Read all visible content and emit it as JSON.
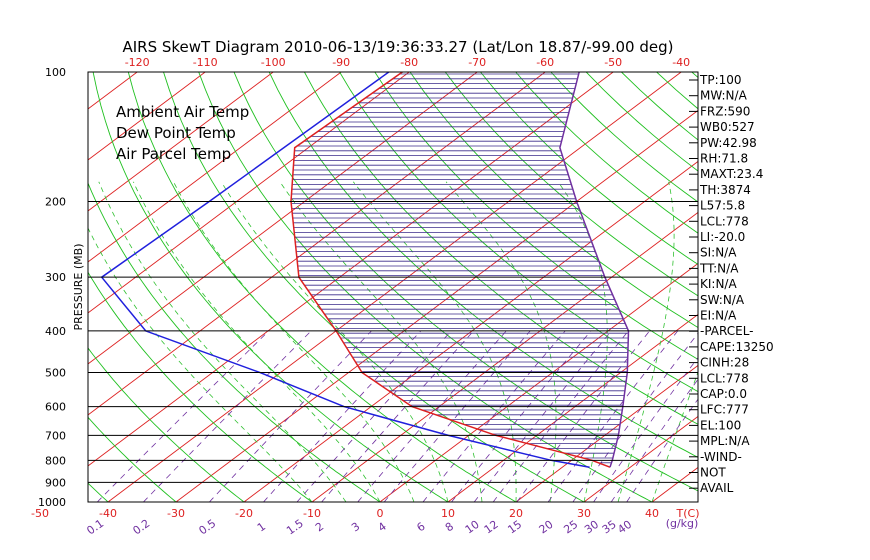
{
  "chart_data": {
    "type": "line",
    "title": "AIRS SkewT Diagram 2010-06-13/19:36:33.27 (Lat/Lon 18.87/-99.00 deg)",
    "ylabel": "PRESSURE (MB)",
    "xlabel": "T(C)",
    "mixing_ratio_label": "(g/kg)",
    "pressure_ticks": [
      "100",
      "200",
      "300",
      "400",
      "500",
      "600",
      "700",
      "800",
      "900",
      "1000"
    ],
    "temp_ticks_bottom": [
      "-50",
      "-40",
      "-30",
      "-20",
      "-10",
      "0",
      "10",
      "20",
      "30",
      "40"
    ],
    "temp_ticks_top": [
      "-120",
      "-110",
      "-100",
      "-90",
      "-80",
      "-70",
      "-60",
      "-50",
      "-40"
    ],
    "mixing_ratio_ticks": [
      "0.1",
      "0.2",
      "0.5",
      "1",
      "1.5",
      "2",
      "3",
      "4",
      "6",
      "8",
      "10",
      "12",
      "15",
      "20",
      "25",
      "30",
      "35",
      "40"
    ],
    "legend": [
      {
        "label": "Ambient Air Temp",
        "color": "#dd2020"
      },
      {
        "label": "Dew Point Temp",
        "color": "#2020dd"
      },
      {
        "label": "Air Parcel Temp",
        "color": "#7030a0"
      }
    ],
    "series": [
      {
        "name": "Ambient Air Temp",
        "color": "#dd2020",
        "points": [
          [
            100,
            -81
          ],
          [
            150,
            -82
          ],
          [
            200,
            -72
          ],
          [
            300,
            -56
          ],
          [
            400,
            -40
          ],
          [
            500,
            -28
          ],
          [
            600,
            -14
          ],
          [
            700,
            4
          ],
          [
            800,
            23
          ],
          [
            830,
            27
          ]
        ]
      },
      {
        "name": "Dew Point Temp",
        "color": "#2020dd",
        "points": [
          [
            100,
            -83
          ],
          [
            200,
            -84
          ],
          [
            300,
            -85
          ],
          [
            400,
            -68
          ],
          [
            500,
            -43
          ],
          [
            600,
            -24
          ],
          [
            700,
            -3
          ],
          [
            800,
            17
          ],
          [
            830,
            24
          ]
        ]
      },
      {
        "name": "Air Parcel Temp",
        "color": "#7030a0",
        "points": [
          [
            100,
            -55
          ],
          [
            150,
            -43
          ],
          [
            200,
            -30
          ],
          [
            300,
            -11
          ],
          [
            400,
            3
          ],
          [
            500,
            11
          ],
          [
            600,
            17
          ],
          [
            700,
            22
          ],
          [
            800,
            26
          ],
          [
            830,
            27
          ]
        ]
      }
    ],
    "stats": [
      "TP:100",
      "MW:N/A",
      "FRZ:590",
      "WB0:527",
      "PW:42.98",
      "RH:71.8",
      "MAXT:23.4",
      "TH:3874",
      "L57:5.8",
      "LCL:778",
      "LI:-20.0",
      "SI:N/A",
      "TT:N/A",
      "KI:N/A",
      "SW:N/A",
      "EI:N/A",
      "-PARCEL-",
      "CAPE:13250",
      "CINH:28",
      "LCL:778",
      "CAP:0.0",
      "LFC:777",
      "EL:100",
      "MPL:N/A",
      "-WIND-",
      "NOT",
      "AVAIL"
    ]
  },
  "colors": {
    "isotherm": "#dd2020",
    "dry_adiabat": "#20c020",
    "moist_adiabat": "#30c030",
    "mixing_ratio": "#7030a0",
    "hatch": "#3a2a8a",
    "axis_text_red": "#dd2020",
    "axis_text_purple": "#7030a0"
  }
}
